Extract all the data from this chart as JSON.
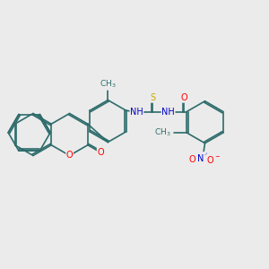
{
  "background_color": "#ebebeb",
  "bond_color": "#2d6b6b",
  "bond_width": 1.2,
  "atom_colors": {
    "O": "#ff0000",
    "N": "#0000cc",
    "S": "#ccaa00",
    "C": "#2d6b6b"
  },
  "font_size": 7.0
}
